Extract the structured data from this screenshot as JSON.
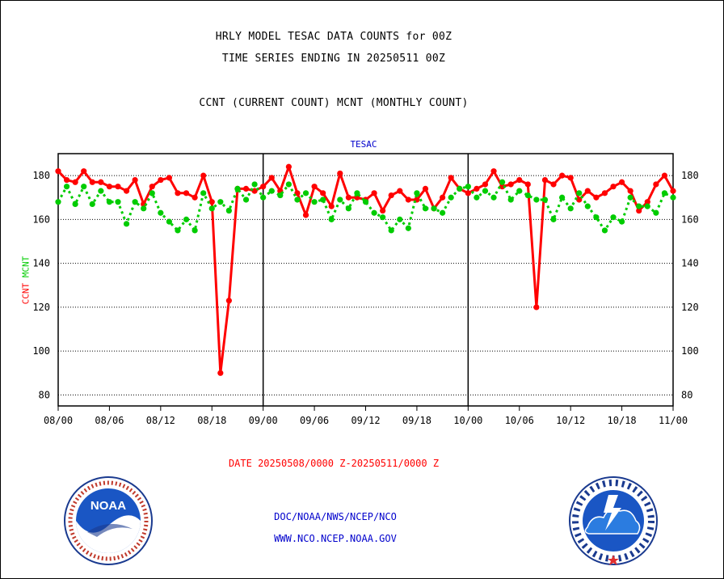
{
  "header": {
    "line1": "HRLY MODEL TESAC DATA COUNTS for 00Z",
    "line2": "TIME SERIES ENDING IN 20250511 00Z",
    "line3": "CCNT (CURRENT COUNT) MCNT (MONTHLY COUNT)"
  },
  "footer": {
    "date_range": "DATE 20250508/0000 Z-20250511/0000 Z",
    "org": "DOC/NOAA/NWS/NCEP/NCO",
    "url": "WWW.NCO.NCEP.NOAA.GOV"
  },
  "logos": {
    "left": "NOAA",
    "right_ring": "NATIONAL WEATHER SERVICE"
  },
  "chart_data": {
    "type": "line",
    "title": "TESAC",
    "ylabel_parts": [
      "CCNT",
      "MCNT"
    ],
    "ylim": [
      75,
      190
    ],
    "yticks": [
      80,
      100,
      120,
      140,
      160,
      180
    ],
    "xlim": [
      0,
      72
    ],
    "xticks": [
      {
        "x": 0,
        "label": "08/00"
      },
      {
        "x": 6,
        "label": "08/06"
      },
      {
        "x": 12,
        "label": "08/12"
      },
      {
        "x": 18,
        "label": "08/18"
      },
      {
        "x": 24,
        "label": "09/00"
      },
      {
        "x": 30,
        "label": "09/06"
      },
      {
        "x": 36,
        "label": "09/12"
      },
      {
        "x": 42,
        "label": "09/18"
      },
      {
        "x": 48,
        "label": "10/00"
      },
      {
        "x": 54,
        "label": "10/06"
      },
      {
        "x": 60,
        "label": "10/12"
      },
      {
        "x": 66,
        "label": "10/18"
      },
      {
        "x": 72,
        "label": "11/00"
      }
    ],
    "day_dividers": [
      24,
      48
    ],
    "grid": "horizontal-dotted",
    "series": [
      {
        "name": "CCNT",
        "color": "#ff0000",
        "style": "solid",
        "values": [
          182,
          178,
          177,
          182,
          177,
          177,
          175,
          175,
          173,
          178,
          167,
          175,
          178,
          179,
          172,
          172,
          170,
          180,
          168,
          90,
          123,
          174,
          174,
          173,
          175,
          179,
          173,
          184,
          172,
          162,
          175,
          172,
          166,
          181,
          170,
          170,
          169,
          172,
          164,
          171,
          173,
          169,
          169,
          174,
          165,
          170,
          179,
          174,
          172,
          174,
          176,
          182,
          175,
          176,
          178,
          176,
          120,
          178,
          176,
          180,
          179,
          169,
          173,
          170,
          172,
          175,
          177,
          173,
          164,
          168,
          176,
          180,
          173
        ]
      },
      {
        "name": "MCNT",
        "color": "#00cc00",
        "style": "dotted",
        "values": [
          168,
          175,
          167,
          175,
          167,
          173,
          168,
          168,
          158,
          168,
          165,
          172,
          163,
          159,
          155,
          160,
          155,
          172,
          165,
          168,
          164,
          174,
          169,
          176,
          170,
          173,
          171,
          176,
          169,
          172,
          168,
          169,
          160,
          169,
          165,
          172,
          168,
          163,
          161,
          155,
          160,
          156,
          172,
          165,
          165,
          163,
          170,
          174,
          175,
          170,
          173,
          170,
          177,
          169,
          173,
          171,
          169,
          169,
          160,
          170,
          165,
          172,
          166,
          161,
          155,
          161,
          159,
          170,
          166,
          166,
          163,
          172,
          170
        ]
      }
    ]
  }
}
